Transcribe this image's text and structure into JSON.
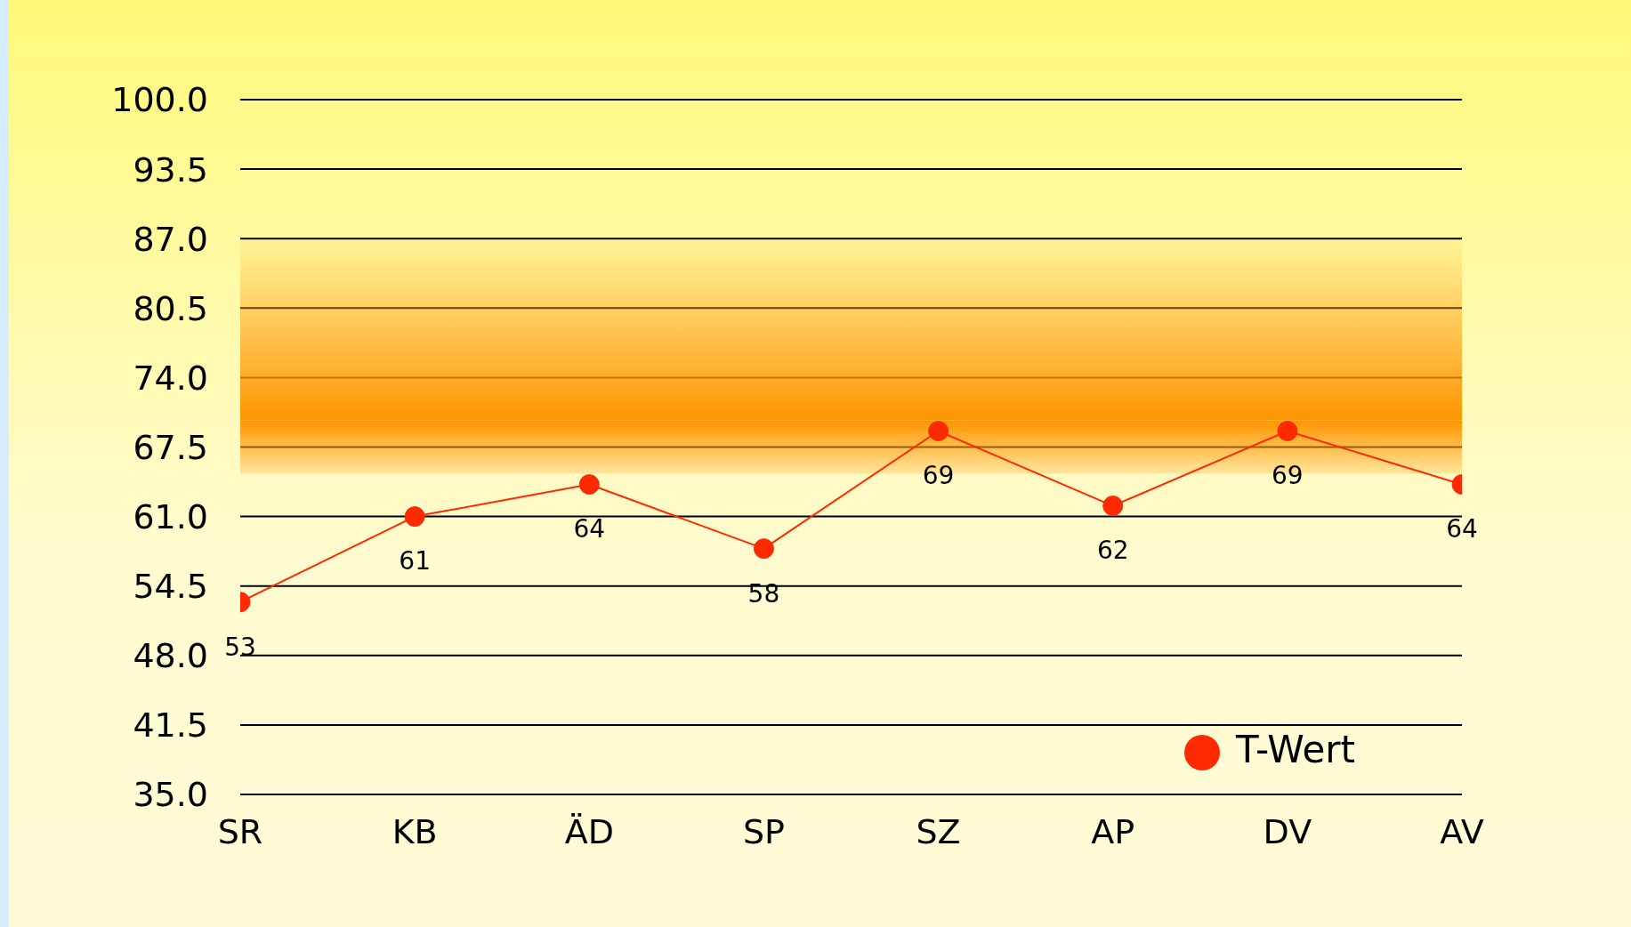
{
  "chart_data": {
    "type": "line",
    "categories": [
      "SR",
      "KB",
      "ÄD",
      "SP",
      "SZ",
      "AP",
      "DV",
      "AV"
    ],
    "series": [
      {
        "name": "T-Wert",
        "color": "#ff2a00",
        "values": [
          53,
          61,
          64,
          58,
          69,
          62,
          69,
          64
        ]
      }
    ],
    "ylim": [
      35,
      100
    ],
    "yticks": [
      {
        "value": 35,
        "label": "35.0"
      },
      {
        "value": 41.5,
        "label": "41.5"
      },
      {
        "value": 48,
        "label": "48.0"
      },
      {
        "value": 54.5,
        "label": "54.5"
      },
      {
        "value": 61,
        "label": "61.0"
      },
      {
        "value": 67.5,
        "label": "67.5"
      },
      {
        "value": 74,
        "label": "74.0"
      },
      {
        "value": 80.5,
        "label": "80.5"
      },
      {
        "value": 87,
        "label": "87.0"
      },
      {
        "value": 93.5,
        "label": "93.5"
      },
      {
        "value": 100,
        "label": "100.0"
      }
    ],
    "bands": [
      {
        "axis": "y",
        "from": 65,
        "to": 70,
        "color": "#ff9500"
      },
      {
        "axis": "y",
        "from": 70,
        "to": 87,
        "color": "#ff9500"
      }
    ],
    "grid": "y",
    "legend": "bottom right",
    "marker": "circle",
    "line_style": "solid",
    "data_labels": true
  }
}
